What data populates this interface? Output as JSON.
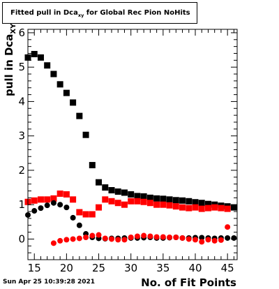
{
  "chart_data": {
    "type": "scatter",
    "title_main": "Fitted pull in Dca",
    "title_sub": "xy",
    "title_rest": " for Global Rec Pion NoHits",
    "xlabel": "No. of Fit Points",
    "ylabel_main": "pull in Dca",
    "ylabel_sub": "XY",
    "xlim": [
      14,
      46.5
    ],
    "ylim": [
      -0.6,
      6.1
    ],
    "x_ticks": [
      "15",
      "20",
      "25",
      "30",
      "35",
      "40",
      "45"
    ],
    "y_ticks": [
      "0",
      "1",
      "2",
      "3",
      "4",
      "5",
      "6"
    ],
    "grid": false,
    "series": [
      {
        "marker": "square",
        "color": "#000000",
        "x": [
          14,
          15,
          16,
          17,
          18,
          19,
          20,
          21,
          22,
          23,
          24,
          25,
          26,
          27,
          28,
          29,
          30,
          31,
          32,
          33,
          34,
          35,
          36,
          37,
          38,
          39,
          40,
          41,
          42,
          43,
          44,
          45,
          46
        ],
        "y": [
          5.28,
          5.38,
          5.28,
          5.05,
          4.8,
          4.5,
          4.25,
          3.97,
          3.58,
          3.03,
          2.15,
          1.65,
          1.5,
          1.42,
          1.38,
          1.35,
          1.3,
          1.25,
          1.24,
          1.2,
          1.18,
          1.17,
          1.15,
          1.13,
          1.12,
          1.1,
          1.07,
          1.05,
          1.02,
          1.0,
          0.97,
          0.95,
          0.92
        ]
      },
      {
        "marker": "square",
        "color": "#ff0000",
        "x": [
          14,
          15,
          16,
          17,
          18,
          19,
          20,
          21,
          22,
          23,
          24,
          25,
          26,
          27,
          28,
          29,
          30,
          31,
          32,
          33,
          34,
          35,
          36,
          37,
          38,
          39,
          40,
          41,
          42,
          43,
          44,
          45
        ],
        "y": [
          1.08,
          1.12,
          1.15,
          1.15,
          1.18,
          1.32,
          1.3,
          1.15,
          0.78,
          0.72,
          0.72,
          0.92,
          1.15,
          1.1,
          1.05,
          1.0,
          1.1,
          1.1,
          1.08,
          1.05,
          1.0,
          1.0,
          0.98,
          0.95,
          0.92,
          0.9,
          0.92,
          0.88,
          0.9,
          0.92,
          0.9,
          0.88
        ]
      },
      {
        "marker": "circle",
        "color": "#000000",
        "x": [
          14,
          15,
          16,
          17,
          18,
          19,
          20,
          21,
          22,
          23,
          24,
          25,
          26,
          27,
          28,
          29,
          30,
          31,
          32,
          33,
          34,
          35,
          36,
          37,
          38,
          39,
          40,
          41,
          42,
          43,
          44,
          45,
          46
        ],
        "y": [
          0.7,
          0.82,
          0.9,
          0.98,
          1.05,
          1.0,
          0.92,
          0.62,
          0.4,
          0.15,
          0.05,
          0.02,
          0.01,
          0.02,
          0.02,
          0.03,
          0.03,
          0.03,
          0.04,
          0.05,
          0.03,
          0.03,
          0.04,
          0.05,
          0.03,
          0.03,
          0.04,
          0.04,
          0.03,
          0.02,
          0.03,
          0.03,
          0.03
        ]
      },
      {
        "marker": "circle",
        "color": "#ff0000",
        "x": [
          18,
          19,
          20,
          21,
          22,
          23,
          24,
          25,
          26,
          27,
          28,
          29,
          30,
          31,
          32,
          33,
          34,
          35,
          36,
          37,
          38,
          39,
          40,
          41,
          42,
          43,
          44,
          45
        ],
        "y": [
          -0.12,
          -0.05,
          -0.02,
          0.0,
          0.02,
          0.05,
          0.1,
          0.12,
          0.02,
          0.0,
          -0.02,
          -0.02,
          0.05,
          0.08,
          0.1,
          0.08,
          0.06,
          0.06,
          0.05,
          0.05,
          0.03,
          0.0,
          -0.02,
          -0.08,
          -0.02,
          -0.05,
          -0.03,
          0.35
        ]
      }
    ]
  },
  "footer": {
    "date": "Sun Apr 25 10:39:28 2021"
  }
}
